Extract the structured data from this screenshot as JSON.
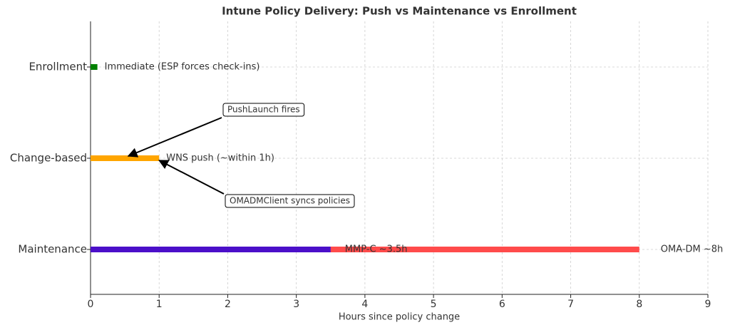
{
  "chart_data": {
    "type": "timeline",
    "title": "Intune Policy Delivery: Push vs Maintenance vs Enrollment",
    "x_label": "Hours since policy change",
    "categories": [
      "Enrollment",
      "Change-based",
      "Maintenance"
    ],
    "series": [
      {
        "color": "#ff4b4b",
        "values": [
          null,
          null,
          8
        ],
        "label": "OMA-DM ~8h",
        "label_color": "#ff0000"
      },
      {
        "color": "#4b0fc9",
        "values": [
          null,
          null,
          3.5
        ],
        "label": "MMP-C ~3.5h",
        "label_color": "#0000ff"
      },
      {
        "color": "#ffa500",
        "values": [
          null,
          1,
          null
        ],
        "label": "WNS push (~within 1h)",
        "label_color": "#333333"
      },
      {
        "color": "#008000",
        "values": [
          0.1,
          null,
          null
        ],
        "label": "Immediate (ESP forces check-ins)",
        "label_color": "#333333"
      }
    ],
    "annotations": [
      {
        "text": "PushLaunch fires",
        "x": 0.55,
        "category": "Change-based"
      },
      {
        "text": "OMADMClient syncs policies",
        "x": 1,
        "category": "Change-based"
      }
    ],
    "xlim": [
      0,
      9
    ],
    "xticks": [
      0,
      1,
      2,
      3,
      4,
      5,
      6,
      7,
      8,
      9
    ],
    "grid": true
  }
}
